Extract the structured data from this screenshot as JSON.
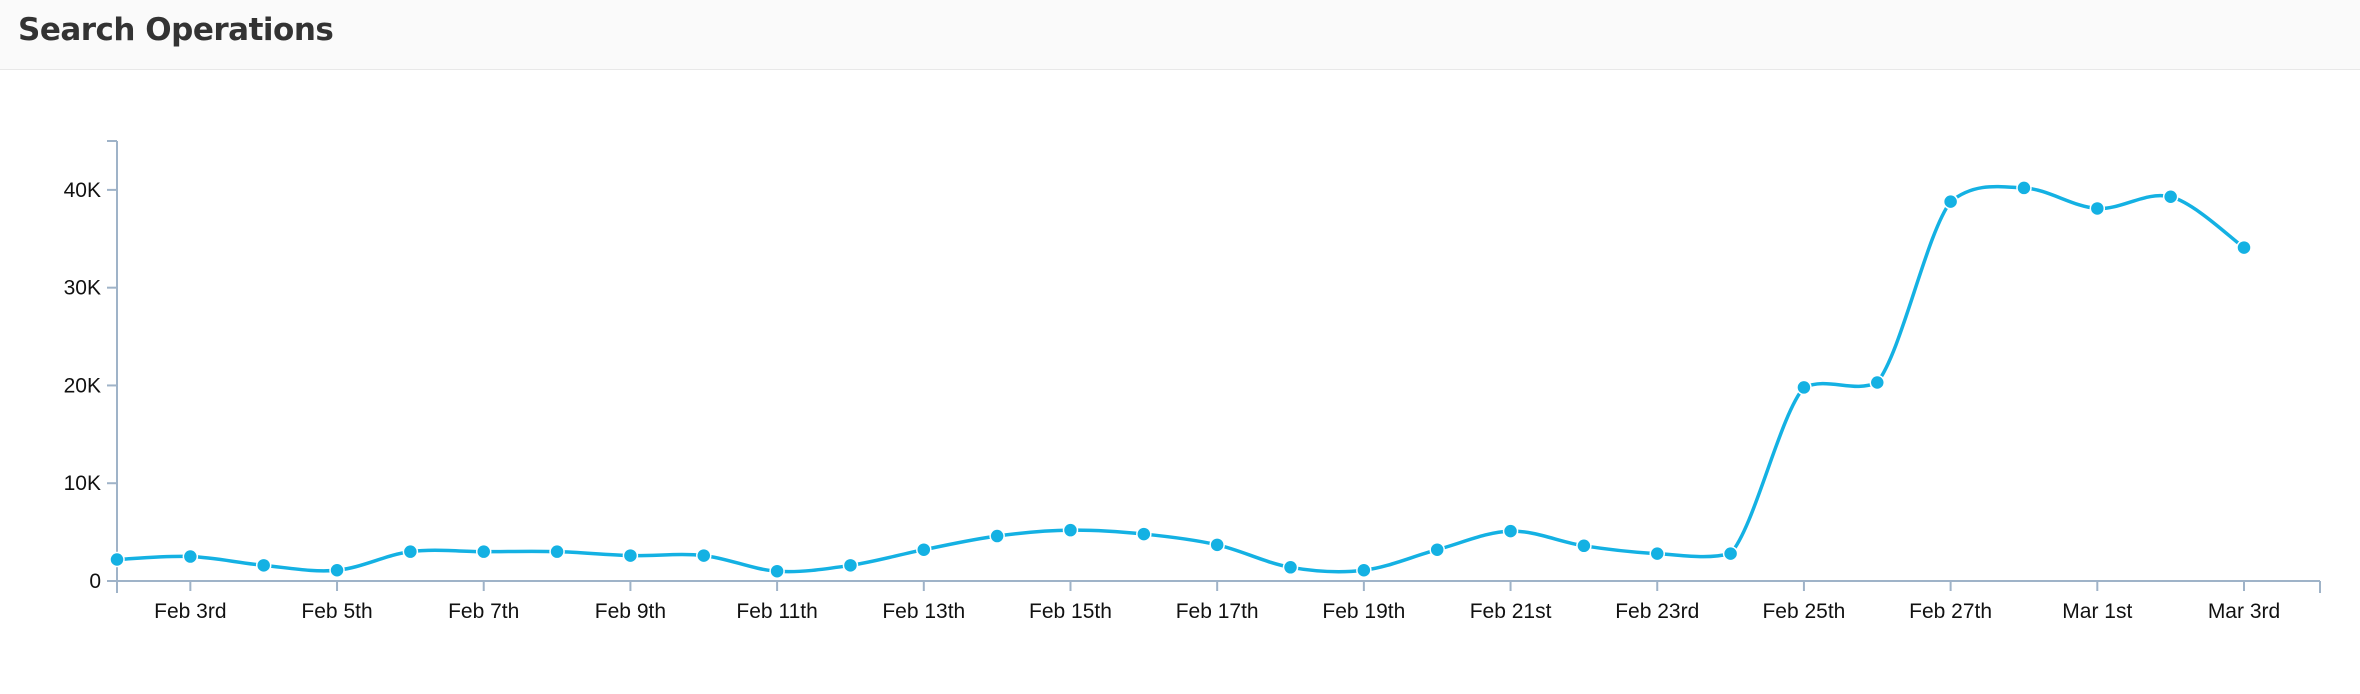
{
  "title": "Search Operations",
  "colors": {
    "line": "#14b1e3",
    "axis": "#9fb3c8",
    "text": "#111111"
  },
  "chart_data": {
    "type": "line",
    "title": "Search Operations",
    "xlabel": "",
    "ylabel": "",
    "ylim": [
      0,
      45000
    ],
    "y_ticks": [
      0,
      10000,
      20000,
      30000,
      40000
    ],
    "y_tick_labels": [
      "0",
      "10K",
      "20K",
      "30K",
      "40K"
    ],
    "x": [
      "2025-02-02",
      "2025-02-03",
      "2025-02-04",
      "2025-02-05",
      "2025-02-06",
      "2025-02-07",
      "2025-02-08",
      "2025-02-09",
      "2025-02-10",
      "2025-02-11",
      "2025-02-12",
      "2025-02-13",
      "2025-02-14",
      "2025-02-15",
      "2025-02-16",
      "2025-02-17",
      "2025-02-18",
      "2025-02-19",
      "2025-02-20",
      "2025-02-21",
      "2025-02-22",
      "2025-02-23",
      "2025-02-24",
      "2025-02-25",
      "2025-02-26",
      "2025-02-27",
      "2025-02-28",
      "2025-03-01",
      "2025-03-02",
      "2025-03-03"
    ],
    "x_ticks": [
      {
        "label": "Feb 3rd",
        "index": 1
      },
      {
        "label": "Feb 5th",
        "index": 3
      },
      {
        "label": "Feb 7th",
        "index": 5
      },
      {
        "label": "Feb 9th",
        "index": 7
      },
      {
        "label": "Feb 11th",
        "index": 9
      },
      {
        "label": "Feb 13th",
        "index": 11
      },
      {
        "label": "Feb 15th",
        "index": 13
      },
      {
        "label": "Feb 17th",
        "index": 15
      },
      {
        "label": "Feb 19th",
        "index": 17
      },
      {
        "label": "Feb 21st",
        "index": 19
      },
      {
        "label": "Feb 23rd",
        "index": 21
      },
      {
        "label": "Feb 25th",
        "index": 23
      },
      {
        "label": "Feb 27th",
        "index": 25
      },
      {
        "label": "Mar 1st",
        "index": 27
      },
      {
        "label": "Mar 3rd",
        "index": 29
      }
    ],
    "series": [
      {
        "values": [
          2200,
          2500,
          1600,
          1100,
          3000,
          3000,
          3000,
          2600,
          2600,
          1000,
          1600,
          3200,
          4600,
          5200,
          4800,
          3700,
          1400,
          1100,
          3200,
          5100,
          3600,
          2800,
          2800,
          19800,
          20300,
          38800,
          40200,
          38100,
          39300,
          34100
        ]
      }
    ],
    "grid": false,
    "legend": "none"
  }
}
